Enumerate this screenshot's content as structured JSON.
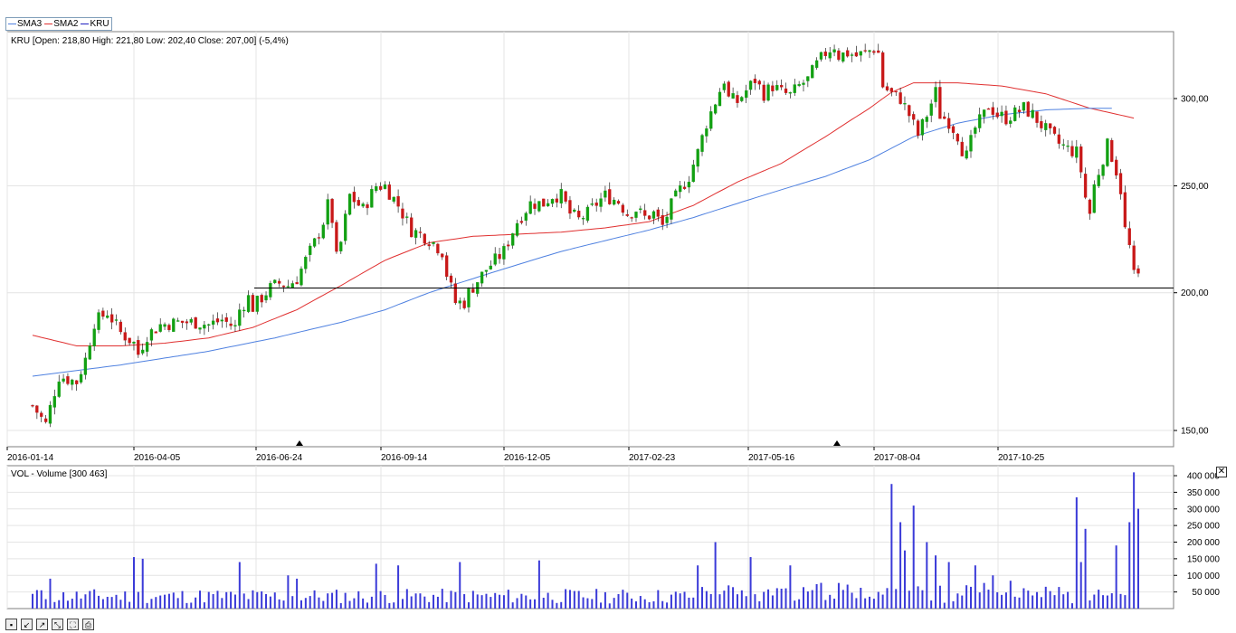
{
  "legend": {
    "items": [
      {
        "label": "SMA3",
        "color": "#4f81e0"
      },
      {
        "label": "SMA2",
        "color": "#e03030"
      },
      {
        "label": "KRU",
        "color": "#2020c0"
      }
    ]
  },
  "price_panel": {
    "info": "KRU [Open: 218,80  High: 221,80  Low: 202,40  Close: 207,00] (-5,4%)"
  },
  "volume_panel": {
    "info": "VOL - Volume [300 463]"
  },
  "chart_data": [
    {
      "type": "candlestick",
      "title": "KRU [Open: 218,80  High: 221,80  Low: 202,40  Close: 207,00] (-5,4%)",
      "x_tick_labels": [
        "2016-01-14",
        "2016-04-05",
        "2016-06-24",
        "2016-09-14",
        "2016-12-05",
        "2017-02-23",
        "2017-05-16",
        "2017-08-04",
        "2017-10-25"
      ],
      "y_tick_labels": [
        "150,00",
        "200,00",
        "250,00",
        "300,00"
      ],
      "y_ticks": [
        150,
        200,
        250,
        300
      ],
      "ylim": [
        145,
        345
      ],
      "y_scale": "log",
      "grid": true,
      "horizontal_line": 202,
      "markers": [
        "2016-06-24",
        "2017-06-27"
      ],
      "price_path": [
        [
          0,
          158
        ],
        [
          3,
          152
        ],
        [
          6,
          168
        ],
        [
          10,
          166
        ],
        [
          12,
          174
        ],
        [
          14,
          188
        ],
        [
          17,
          192
        ],
        [
          20,
          184
        ],
        [
          23,
          180
        ],
        [
          24,
          176
        ],
        [
          26,
          183
        ],
        [
          29,
          187
        ],
        [
          33,
          188
        ],
        [
          37,
          188
        ],
        [
          40,
          187
        ],
        [
          43,
          189
        ],
        [
          46,
          186
        ],
        [
          47,
          193
        ],
        [
          49,
          198
        ],
        [
          50,
          194
        ],
        [
          52,
          198
        ],
        [
          54,
          202
        ],
        [
          56,
          204
        ],
        [
          58,
          203
        ],
        [
          60,
          206
        ],
        [
          62,
          214
        ],
        [
          64,
          222
        ],
        [
          66,
          232
        ],
        [
          67,
          240
        ],
        [
          68,
          233
        ],
        [
          69,
          215
        ],
        [
          70,
          222
        ],
        [
          72,
          245
        ],
        [
          75,
          238
        ],
        [
          78,
          250
        ],
        [
          80,
          250
        ],
        [
          83,
          240
        ],
        [
          86,
          228
        ],
        [
          89,
          225
        ],
        [
          91,
          222
        ],
        [
          93,
          218
        ],
        [
          94,
          208
        ],
        [
          96,
          196
        ],
        [
          98,
          196
        ],
        [
          99,
          200
        ],
        [
          101,
          205
        ],
        [
          103,
          210
        ],
        [
          105,
          214
        ],
        [
          107,
          218
        ],
        [
          110,
          232
        ],
        [
          113,
          241
        ],
        [
          116,
          241
        ],
        [
          118,
          245
        ],
        [
          120,
          245
        ],
        [
          122,
          236
        ],
        [
          124,
          233
        ],
        [
          126,
          236
        ],
        [
          128,
          241
        ],
        [
          130,
          245
        ],
        [
          133,
          242
        ],
        [
          135,
          236
        ],
        [
          137,
          238
        ],
        [
          139,
          234
        ],
        [
          141,
          236
        ],
        [
          143,
          230
        ],
        [
          145,
          240
        ],
        [
          147,
          248
        ],
        [
          149,
          255
        ],
        [
          151,
          268
        ],
        [
          153,
          285
        ],
        [
          155,
          298
        ],
        [
          157,
          312
        ],
        [
          158,
          300
        ],
        [
          160,
          298
        ],
        [
          162,
          305
        ],
        [
          164,
          312
        ],
        [
          166,
          303
        ],
        [
          168,
          308
        ],
        [
          170,
          304
        ],
        [
          172,
          302
        ],
        [
          174,
          308
        ],
        [
          176,
          312
        ],
        [
          178,
          322
        ],
        [
          180,
          330
        ],
        [
          182,
          335
        ],
        [
          183,
          328
        ],
        [
          185,
          330
        ],
        [
          187,
          328
        ],
        [
          189,
          330
        ],
        [
          191,
          333
        ],
        [
          192,
          330
        ],
        [
          193,
          308
        ],
        [
          195,
          303
        ],
        [
          197,
          300
        ],
        [
          199,
          290
        ],
        [
          201,
          278
        ],
        [
          203,
          290
        ],
        [
          205,
          304
        ],
        [
          206,
          290
        ],
        [
          208,
          286
        ],
        [
          210,
          278
        ],
        [
          211,
          270
        ],
        [
          212,
          266
        ],
        [
          214,
          282
        ],
        [
          216,
          290
        ],
        [
          217,
          296
        ],
        [
          219,
          290
        ],
        [
          221,
          288
        ],
        [
          223,
          291
        ],
        [
          225,
          294
        ],
        [
          227,
          290
        ],
        [
          229,
          284
        ],
        [
          231,
          278
        ],
        [
          233,
          273
        ],
        [
          235,
          270
        ],
        [
          237,
          268
        ],
        [
          238,
          258
        ],
        [
          239,
          244
        ],
        [
          240,
          236
        ],
        [
          241,
          250
        ],
        [
          243,
          265
        ],
        [
          244,
          272
        ],
        [
          245,
          266
        ],
        [
          246,
          258
        ],
        [
          247,
          248
        ],
        [
          248,
          228
        ],
        [
          249,
          220
        ],
        [
          250,
          207
        ]
      ],
      "series": [
        {
          "name": "SMA2",
          "color": "#e03030",
          "path": [
            [
              0,
              183
            ],
            [
              10,
              179
            ],
            [
              20,
              179
            ],
            [
              30,
              180
            ],
            [
              40,
              182
            ],
            [
              50,
              186
            ],
            [
              60,
              193
            ],
            [
              70,
              203
            ],
            [
              80,
              214
            ],
            [
              90,
              222
            ],
            [
              100,
              225
            ],
            [
              110,
              226
            ],
            [
              120,
              227
            ],
            [
              130,
              229
            ],
            [
              140,
              232
            ],
            [
              150,
              240
            ],
            [
              160,
              252
            ],
            [
              170,
              262
            ],
            [
              180,
              277
            ],
            [
              190,
              294
            ],
            [
              195,
              304
            ],
            [
              200,
              310
            ],
            [
              210,
              310
            ],
            [
              220,
              308
            ],
            [
              230,
              303
            ],
            [
              240,
              294
            ],
            [
              250,
              288
            ]
          ]
        },
        {
          "name": "SMA3",
          "color": "#4f81e0",
          "path": [
            [
              0,
              168
            ],
            [
              20,
              172
            ],
            [
              40,
              177
            ],
            [
              55,
              182
            ],
            [
              70,
              188
            ],
            [
              80,
              193
            ],
            [
              90,
              200
            ],
            [
              100,
              206
            ],
            [
              110,
              212
            ],
            [
              120,
              218
            ],
            [
              130,
              223
            ],
            [
              140,
              228
            ],
            [
              150,
              234
            ],
            [
              160,
              241
            ],
            [
              170,
              248
            ],
            [
              180,
              255
            ],
            [
              190,
              264
            ],
            [
              200,
              277
            ],
            [
              210,
              285
            ],
            [
              220,
              290
            ],
            [
              230,
              293
            ],
            [
              240,
              294
            ],
            [
              245,
              294
            ]
          ]
        }
      ]
    },
    {
      "type": "bar",
      "title": "VOL - Volume [300 463]",
      "y_tick_labels": [
        "50 000",
        "100 000",
        "150 000",
        "200 000",
        "250 000",
        "300 000",
        "350 000",
        "400 000"
      ],
      "y_ticks": [
        50000,
        100000,
        150000,
        200000,
        250000,
        300000,
        350000,
        400000
      ],
      "ylim": [
        0,
        430000
      ],
      "grid": true,
      "last_value": 300463,
      "peaks": [
        [
          2,
          55000
        ],
        [
          4,
          90000
        ],
        [
          23,
          155000
        ],
        [
          25,
          150000
        ],
        [
          47,
          140000
        ],
        [
          58,
          100000
        ],
        [
          60,
          90000
        ],
        [
          78,
          135000
        ],
        [
          83,
          130000
        ],
        [
          97,
          140000
        ],
        [
          115,
          145000
        ],
        [
          151,
          130000
        ],
        [
          155,
          200000
        ],
        [
          163,
          155000
        ],
        [
          172,
          130000
        ],
        [
          195,
          375000
        ],
        [
          197,
          260000
        ],
        [
          198,
          175000
        ],
        [
          200,
          310000
        ],
        [
          203,
          200000
        ],
        [
          205,
          160000
        ],
        [
          208,
          140000
        ],
        [
          214,
          130000
        ],
        [
          218,
          100000
        ],
        [
          237,
          335000
        ],
        [
          238,
          140000
        ],
        [
          239,
          240000
        ],
        [
          246,
          190000
        ],
        [
          249,
          260000
        ],
        [
          250,
          410000
        ],
        [
          251,
          300463
        ]
      ]
    }
  ]
}
